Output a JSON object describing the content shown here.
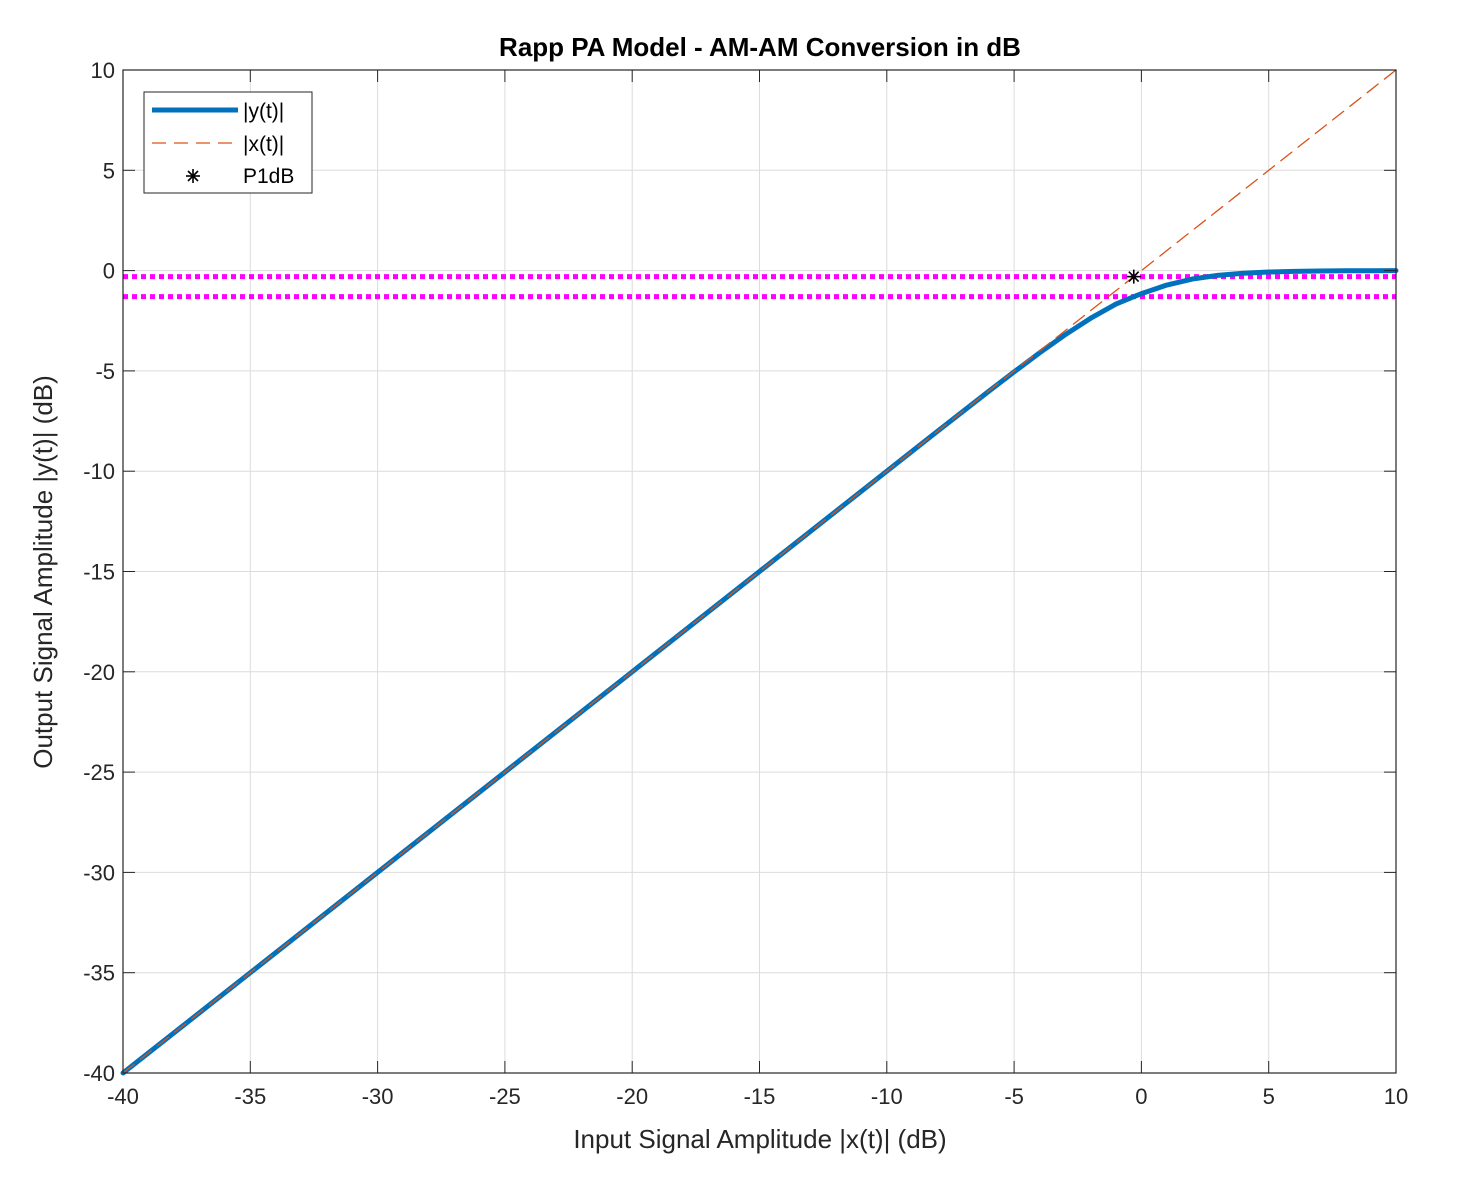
{
  "chart_data": {
    "type": "line",
    "title": "Rapp PA Model - AM-AM Conversion in dB",
    "xlabel": "Input Signal Amplitude |x(t)| (dB)",
    "ylabel": "Output Signal Amplitude |y(t)| (dB)",
    "xlim": [
      -40,
      10
    ],
    "ylim": [
      -40,
      10
    ],
    "xticks": [
      -40,
      -35,
      -30,
      -25,
      -20,
      -15,
      -10,
      -5,
      0,
      5,
      10
    ],
    "yticks": [
      -40,
      -35,
      -30,
      -25,
      -20,
      -15,
      -10,
      -5,
      0,
      5,
      10
    ],
    "xtick_labels": [
      "-40",
      "-35",
      "-30",
      "-25",
      "-20",
      "-15",
      "-10",
      "-5",
      "0",
      "5",
      "10"
    ],
    "ytick_labels": [
      "-40",
      "-35",
      "-30",
      "-25",
      "-20",
      "-15",
      "-10",
      "-5",
      "0",
      "5",
      "10"
    ],
    "grid": true,
    "legend_position": "top-left",
    "series": [
      {
        "name": "|y(t)|",
        "style": "solid",
        "color": "#0072BD",
        "x": [
          -40,
          -35,
          -30,
          -25,
          -20,
          -15,
          -10,
          -8,
          -6,
          -5,
          -4,
          -3,
          -2,
          -1,
          -0.3,
          0,
          1,
          2,
          3,
          4,
          5,
          6,
          7,
          8,
          9,
          10
        ],
        "y": [
          -40,
          -35,
          -30,
          -25,
          -20,
          -15,
          -10,
          -8,
          -6.02,
          -5.05,
          -4.1,
          -3.2,
          -2.38,
          -1.67,
          -1.3,
          -1.15,
          -0.72,
          -0.42,
          -0.24,
          -0.13,
          -0.07,
          -0.04,
          -0.02,
          -0.01,
          -0.005,
          -0.003
        ]
      },
      {
        "name": "|x(t)|",
        "style": "dashed",
        "color": "#D95319",
        "x": [
          -40,
          10
        ],
        "y": [
          -40,
          10
        ]
      },
      {
        "name": "P1dB",
        "style": "marker",
        "marker": "asterisk",
        "color": "#000000",
        "x": [
          -0.3
        ],
        "y": [
          -0.3
        ]
      }
    ],
    "reference_lines": [
      {
        "orientation": "horizontal",
        "y": -0.3,
        "style": "dotted",
        "color": "#FF00FF"
      },
      {
        "orientation": "horizontal",
        "y": -1.3,
        "style": "dotted",
        "color": "#FF00FF"
      }
    ]
  }
}
